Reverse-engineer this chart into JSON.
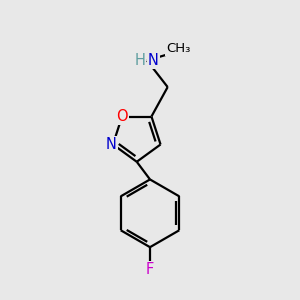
{
  "background_color": "#e8e8e8",
  "bond_color": "#000000",
  "atom_colors": {
    "N": "#0000cd",
    "O": "#ff0000",
    "F": "#cc00cc",
    "H": "#5f9ea0",
    "C": "#000000"
  },
  "figsize": [
    3.0,
    3.0
  ],
  "dpi": 100
}
